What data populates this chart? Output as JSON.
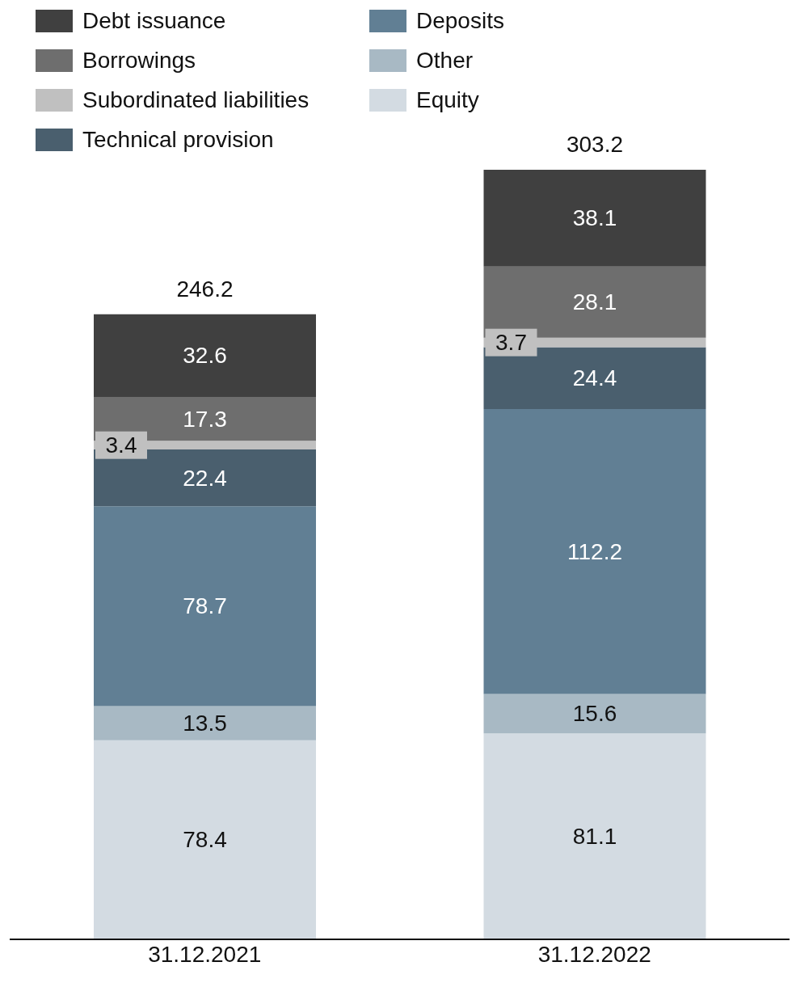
{
  "chart_data": {
    "type": "bar",
    "stacked": true,
    "categories": [
      "31.12.2021",
      "31.12.2022"
    ],
    "series": [
      {
        "name": "Equity",
        "color": "#d3dbe2",
        "values": [
          78.4,
          81.1
        ]
      },
      {
        "name": "Other",
        "color": "#a8b9c4",
        "values": [
          13.5,
          15.6
        ]
      },
      {
        "name": "Deposits",
        "color": "#617f94",
        "values": [
          78.7,
          112.2
        ]
      },
      {
        "name": "Technical provision",
        "color": "#4a5f6e",
        "values": [
          22.4,
          24.4
        ]
      },
      {
        "name": "Subordinated liabilities",
        "color": "#c0c0c0",
        "values": [
          3.4,
          3.7
        ]
      },
      {
        "name": "Borrowings",
        "color": "#6e6e6e",
        "values": [
          17.3,
          28.1
        ]
      },
      {
        "name": "Debt issuance",
        "color": "#404040",
        "values": [
          32.6,
          38.1
        ]
      }
    ],
    "data_labels": true,
    "totals": [
      "246.2",
      "303.2"
    ],
    "legend": "top left",
    "grid": false
  }
}
